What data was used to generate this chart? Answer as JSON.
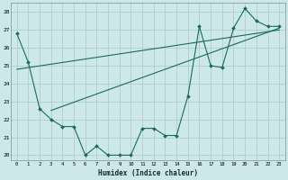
{
  "xlabel": "Humidex (Indice chaleur)",
  "bg_color": "#cce8e8",
  "grid_color": "#b0cccc",
  "line_color": "#1a6b5a",
  "xlim": [
    -0.5,
    23.5
  ],
  "ylim": [
    19.7,
    28.5
  ],
  "yticks": [
    20,
    21,
    22,
    23,
    24,
    25,
    26,
    27,
    28
  ],
  "xticks": [
    0,
    1,
    2,
    3,
    4,
    5,
    6,
    7,
    8,
    9,
    10,
    11,
    12,
    13,
    14,
    15,
    16,
    17,
    18,
    19,
    20,
    21,
    22,
    23
  ],
  "series1_x": [
    0,
    1,
    2,
    3,
    4,
    5,
    6,
    7,
    8,
    9,
    10,
    11,
    12,
    13,
    14,
    15,
    16,
    17,
    18,
    19,
    20,
    21,
    22,
    23
  ],
  "series1_y": [
    26.8,
    25.2,
    22.6,
    22.0,
    21.6,
    21.6,
    20.0,
    20.5,
    20.0,
    20.0,
    20.0,
    21.5,
    21.5,
    21.1,
    21.1,
    23.3,
    27.2,
    25.0,
    24.9,
    27.1,
    28.2,
    27.5,
    27.2,
    27.2
  ],
  "line1_x": [
    3,
    23
  ],
  "line1_y": [
    22.5,
    27.1
  ],
  "line2_x": [
    0,
    23
  ],
  "line2_y": [
    24.8,
    27.0
  ]
}
